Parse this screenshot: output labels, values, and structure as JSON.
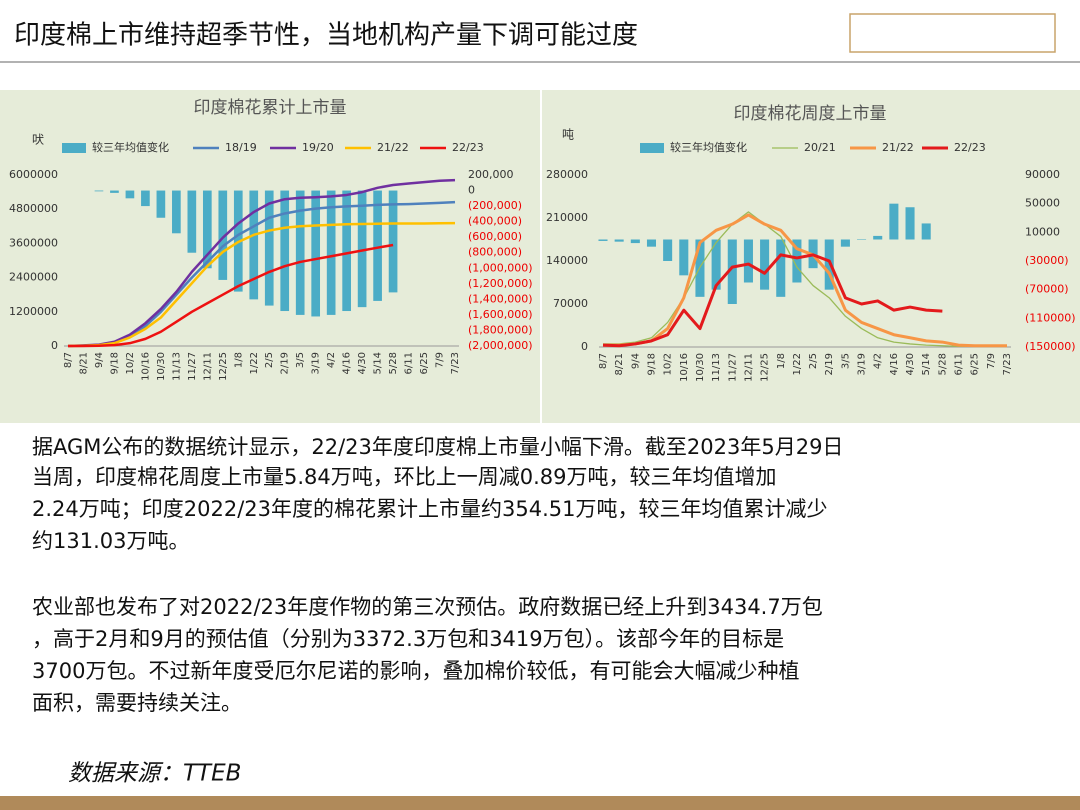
{
  "header": {
    "title": "印度棉上市维持超季节性，当地机构产量下调可能过度"
  },
  "chart_data": [
    {
      "type": "combo",
      "title": "印度棉花累计上市量",
      "y_label": "吠",
      "categories": [
        "8/7",
        "8/21",
        "9/4",
        "9/18",
        "10/2",
        "10/16",
        "10/30",
        "11/13",
        "11/27",
        "12/11",
        "12/25",
        "1/8",
        "1/22",
        "2/5",
        "2/19",
        "3/5",
        "3/19",
        "4/2",
        "4/16",
        "4/30",
        "5/14",
        "5/28",
        "6/11",
        "6/25",
        "7/9",
        "7/23"
      ],
      "ylim": [
        0,
        6000000
      ],
      "yticks": [
        0,
        1200000,
        2400000,
        3600000,
        4800000,
        6000000
      ],
      "y2lim": [
        -2000000,
        200000
      ],
      "y2ticks": [
        {
          "value": 200000,
          "label": "200,000"
        },
        0,
        {
          "value": -200000,
          "label": "(200,000)"
        },
        {
          "value": -400000,
          "label": "(400,000)"
        },
        {
          "value": -600000,
          "label": "(600,000)"
        },
        {
          "value": -800000,
          "label": "(800,000)"
        },
        {
          "value": -1000000,
          "label": "(1,000,000)"
        },
        {
          "value": -1200000,
          "label": "(1,200,000)"
        },
        {
          "value": -1400000,
          "label": "(1,400,000)"
        },
        {
          "value": -1600000,
          "label": "(1,600,000)"
        },
        {
          "value": -1800000,
          "label": "(1,800,000)"
        },
        {
          "value": -2000000,
          "label": "(2,000,000)"
        }
      ],
      "series": [
        {
          "name": "较三年均值变化",
          "type": "bar",
          "axis": "y2",
          "color": "#4bacc6",
          "values": [
            null,
            null,
            -10000,
            -30000,
            -100000,
            -200000,
            -350000,
            -550000,
            -800000,
            -1000000,
            -1150000,
            -1300000,
            -1400000,
            -1480000,
            -1550000,
            -1600000,
            -1620000,
            -1600000,
            -1550000,
            -1500000,
            -1420000,
            -1310300,
            null,
            null,
            null,
            null
          ]
        },
        {
          "name": "18/19",
          "type": "line",
          "color": "#4f81bd",
          "values": [
            0,
            10000,
            40000,
            120000,
            350000,
            700000,
            1200000,
            1800000,
            2400000,
            2950000,
            3500000,
            3900000,
            4200000,
            4500000,
            4650000,
            4750000,
            4820000,
            4870000,
            4900000,
            4920000,
            4950000,
            4970000,
            4980000,
            5000000,
            5020000,
            5050000
          ]
        },
        {
          "name": "19/20",
          "type": "line",
          "color": "#7030a0",
          "values": [
            0,
            20000,
            50000,
            150000,
            400000,
            800000,
            1300000,
            1900000,
            2600000,
            3200000,
            3800000,
            4300000,
            4700000,
            5000000,
            5150000,
            5200000,
            5220000,
            5250000,
            5300000,
            5400000,
            5550000,
            5650000,
            5700000,
            5750000,
            5800000,
            5820000
          ]
        },
        {
          "name": "21/22",
          "type": "line",
          "color": "#ffc000",
          "values": [
            0,
            10000,
            30000,
            100000,
            300000,
            600000,
            1000000,
            1600000,
            2200000,
            2800000,
            3300000,
            3650000,
            3900000,
            4050000,
            4150000,
            4200000,
            4230000,
            4250000,
            4270000,
            4280000,
            4290000,
            4300000,
            4300000,
            4300000,
            4305000,
            4310000
          ]
        },
        {
          "name": "22/23",
          "type": "line",
          "color": "#ee1111",
          "values": [
            0,
            0,
            10000,
            30000,
            100000,
            250000,
            500000,
            850000,
            1200000,
            1500000,
            1800000,
            2100000,
            2350000,
            2600000,
            2800000,
            2950000,
            3050000,
            3150000,
            3250000,
            3350000,
            3450000,
            3545100,
            null,
            null,
            null,
            null
          ]
        }
      ]
    },
    {
      "type": "combo",
      "title": "印度棉花周度上市量",
      "y_label": "吨",
      "categories": [
        "8/7",
        "8/21",
        "9/4",
        "9/18",
        "10/2",
        "10/16",
        "10/30",
        "11/13",
        "11/27",
        "12/11",
        "12/25",
        "1/8",
        "1/22",
        "2/5",
        "2/19",
        "3/5",
        "3/19",
        "4/2",
        "4/16",
        "4/30",
        "5/14",
        "5/28",
        "6/11",
        "6/25",
        "7/9",
        "7/23"
      ],
      "ylim": [
        0,
        280000
      ],
      "yticks": [
        0,
        70000,
        140000,
        210000,
        280000
      ],
      "y2lim": [
        -150000,
        90000
      ],
      "y2ticks": [
        90000,
        50000,
        10000,
        {
          "value": -30000,
          "label": "(30000)"
        },
        {
          "value": -70000,
          "label": "(70000)"
        },
        {
          "value": -110000,
          "label": "(110000)"
        },
        {
          "value": -150000,
          "label": "(150000)"
        }
      ],
      "series": [
        {
          "name": "较三年均值变化",
          "type": "bar",
          "axis": "y2",
          "color": "#4bacc6",
          "values": [
            -2000,
            -3000,
            -5000,
            -10000,
            -30000,
            -50000,
            -80000,
            -70000,
            -90000,
            -60000,
            -70000,
            -80000,
            -60000,
            -40000,
            -70000,
            -10000,
            0,
            5000,
            50000,
            45000,
            22400,
            null,
            null,
            null,
            null,
            null
          ]
        },
        {
          "name": "20/21",
          "type": "line",
          "color": "#9bbb59",
          "values": [
            5000,
            5000,
            8000,
            15000,
            40000,
            80000,
            130000,
            170000,
            200000,
            220000,
            200000,
            180000,
            130000,
            100000,
            80000,
            50000,
            30000,
            15000,
            8000,
            5000,
            3000,
            2000,
            1000,
            1000,
            1000,
            1000
          ]
        },
        {
          "name": "21/22",
          "type": "line",
          "color": "#f79646",
          "values": [
            3000,
            3000,
            5000,
            10000,
            30000,
            80000,
            170000,
            190000,
            200000,
            215000,
            200000,
            190000,
            160000,
            150000,
            120000,
            60000,
            40000,
            30000,
            20000,
            15000,
            10000,
            8000,
            3000,
            2000,
            2000,
            2000
          ]
        },
        {
          "name": "22/23",
          "type": "line",
          "color": "#e31a1c",
          "values": [
            3000,
            2000,
            5000,
            10000,
            20000,
            60000,
            30000,
            100000,
            130000,
            135000,
            120000,
            150000,
            145000,
            150000,
            140000,
            80000,
            70000,
            75000,
            60000,
            65000,
            60000,
            58400,
            null,
            null,
            null,
            null
          ]
        }
      ]
    }
  ],
  "body": {
    "paragraphs": [
      [
        "据AGM公布的数据统计显示，22/23年度印度棉上市量小幅下滑。截至2023年5月29日",
        "当周，印度棉花周度上市量5.84万吨，环比上一周减0.89万吨，较三年均值增加",
        "2.24万吨；印度2022/23年度的棉花累计上市量约354.51万吨，较三年均值累计减少",
        "约131.03万吨。"
      ],
      [
        "农业部也发布了对2022/23年度作物的第三次预估。政府数据已经上升到3434.7万包",
        "，高于2月和9月的预估值（分别为3372.3万包和3419万包）。该部今年的目标是",
        "3700万包。不过新年度受厄尔尼诺的影响，叠加棉价较低，有可能会大幅减少种植",
        "面积，需要持续关注。"
      ]
    ],
    "source": "数据来源：TTEB"
  }
}
